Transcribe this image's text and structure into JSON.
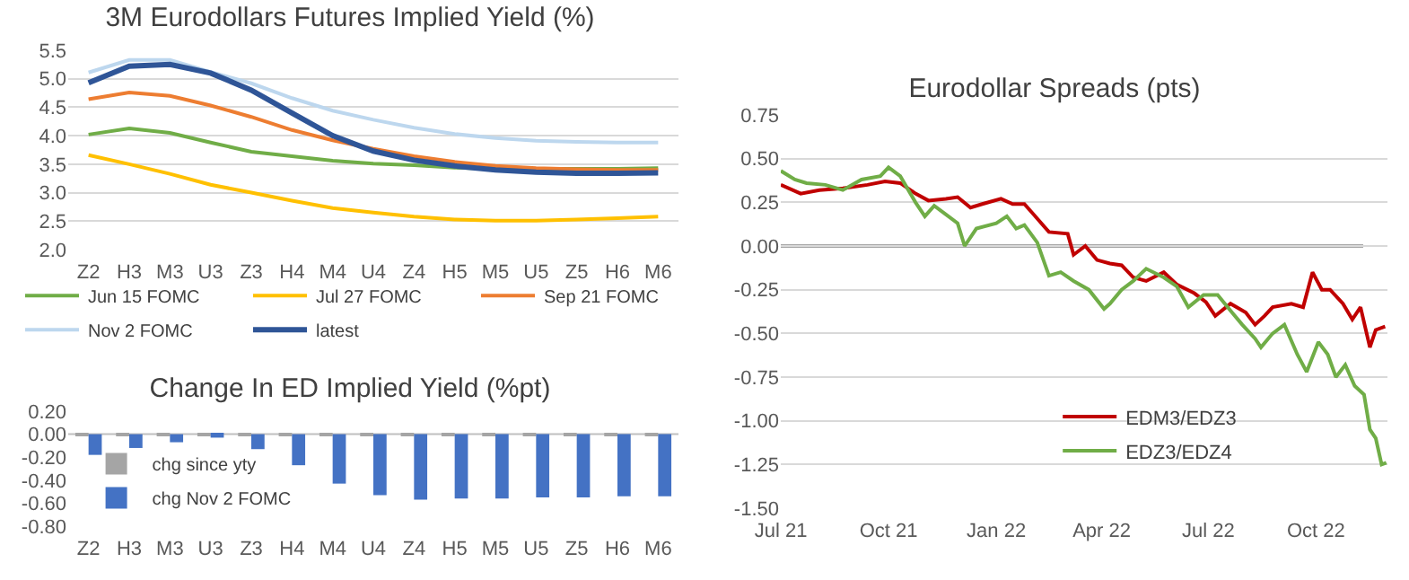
{
  "chart_data": [
    {
      "type": "line",
      "title": "3M Eurodollars Futures Implied Yield (%)",
      "categories": [
        "Z2",
        "H3",
        "M3",
        "U3",
        "Z3",
        "H4",
        "M4",
        "U4",
        "Z4",
        "H5",
        "M5",
        "U5",
        "Z5",
        "H6",
        "M6"
      ],
      "series": [
        {
          "name": "Jun 15 FOMC",
          "color": "#70ad47",
          "values": [
            4.02,
            4.13,
            4.05,
            3.88,
            3.72,
            3.64,
            3.56,
            3.51,
            3.48,
            3.44,
            3.42,
            3.42,
            3.42,
            3.42,
            3.43
          ]
        },
        {
          "name": "Jul 27 FOMC",
          "color": "#ffc000",
          "values": [
            3.66,
            3.5,
            3.33,
            3.14,
            3.0,
            2.86,
            2.73,
            2.65,
            2.58,
            2.53,
            2.51,
            2.51,
            2.53,
            2.55,
            2.58
          ]
        },
        {
          "name": "Sep 21 FOMC",
          "color": "#ed7d31",
          "values": [
            4.64,
            4.76,
            4.7,
            4.53,
            4.33,
            4.1,
            3.92,
            3.77,
            3.64,
            3.54,
            3.47,
            3.43,
            3.41,
            3.4,
            3.4
          ]
        },
        {
          "name": "Nov 2 FOMC",
          "color": "#bdd7ee",
          "values": [
            5.11,
            5.33,
            5.33,
            5.12,
            4.92,
            4.66,
            4.44,
            4.28,
            4.14,
            4.03,
            3.96,
            3.91,
            3.89,
            3.88,
            3.88
          ]
        },
        {
          "name": "latest",
          "color": "#2f5597",
          "values": [
            4.93,
            5.22,
            5.25,
            5.1,
            4.8,
            4.4,
            4.0,
            3.73,
            3.57,
            3.47,
            3.4,
            3.36,
            3.34,
            3.34,
            3.35
          ]
        }
      ],
      "ylim": [
        2,
        5.5
      ],
      "yticks": [
        {
          "value": 2,
          "label": "2.0"
        },
        2.5,
        {
          "value": 3,
          "label": "3.0"
        },
        3.5,
        {
          "value": 4,
          "label": "4.0"
        },
        4.5,
        {
          "value": 5,
          "label": "5.0"
        },
        5.5
      ],
      "grid": "y",
      "legend": "bottom",
      "marker": "none",
      "line_style": "solid"
    },
    {
      "type": "bar",
      "title": "Change In ED Implied Yield (%pt)",
      "categories": [
        "Z2",
        "H3",
        "M3",
        "U3",
        "Z3",
        "H4",
        "M4",
        "U4",
        "Z4",
        "H5",
        "M5",
        "U5",
        "Z5",
        "H6",
        "M6"
      ],
      "series": [
        {
          "name": "chg since yty",
          "color": "#a5a5a5",
          "values": [
            -0.01,
            -0.01,
            -0.01,
            -0.01,
            -0.01,
            -0.01,
            -0.01,
            -0.01,
            -0.01,
            -0.01,
            -0.01,
            -0.01,
            -0.01,
            -0.01,
            -0.01
          ]
        },
        {
          "name": "chg Nov 2 FOMC",
          "color": "#4472c4",
          "values": [
            -0.18,
            -0.12,
            -0.07,
            -0.03,
            -0.13,
            -0.27,
            -0.43,
            -0.53,
            -0.57,
            -0.56,
            -0.56,
            -0.55,
            -0.55,
            -0.54,
            -0.54
          ]
        }
      ],
      "ylim": [
        -0.8,
        0.2
      ],
      "yticks": [
        {
          "value": -0.8,
          "label": "-0.80"
        },
        {
          "value": -0.6,
          "label": "-0.60"
        },
        {
          "value": -0.4,
          "label": "-0.40"
        },
        {
          "value": -0.2,
          "label": "-0.20"
        },
        {
          "value": 0,
          "label": "0.00"
        },
        {
          "value": 0.2,
          "label": "0.20"
        }
      ],
      "ref_lines": [
        {
          "axis": "y",
          "value": 0,
          "color": "#bfbfbf"
        }
      ],
      "grid": false,
      "legend": "bottom left"
    },
    {
      "type": "line",
      "title": "Eurodollar Spreads (pts)",
      "series": [
        {
          "name": "EDM3/EDZ3",
          "color": "#c00000",
          "x": [
            "2021-07-01",
            "2021-07-18",
            "2021-08-03",
            "2021-08-23",
            "2021-09-13",
            "2021-09-28",
            "2021-10-11",
            "2021-10-24",
            "2021-11-04",
            "2021-11-19",
            "2021-11-29",
            "2021-12-10",
            "2021-12-20",
            "2022-01-05",
            "2022-01-15",
            "2022-01-25",
            "2022-02-02",
            "2022-02-15",
            "2022-03-03",
            "2022-03-08",
            "2022-03-18",
            "2022-03-28",
            "2022-04-08",
            "2022-04-18",
            "2022-04-28",
            "2022-05-09",
            "2022-05-24",
            "2022-06-04",
            "2022-06-19",
            "2022-06-29",
            "2022-07-07",
            "2022-07-20",
            "2022-08-02",
            "2022-08-10",
            "2022-08-18",
            "2022-08-25",
            "2022-09-10",
            "2022-09-20",
            "2022-09-28",
            "2022-10-06",
            "2022-10-13",
            "2022-10-24",
            "2022-11-01",
            "2022-11-08",
            "2022-11-16",
            "2022-11-21",
            "2022-11-29"
          ],
          "values": [
            0.35,
            0.3,
            0.32,
            0.33,
            0.35,
            0.37,
            0.36,
            0.3,
            0.26,
            0.27,
            0.28,
            0.22,
            0.24,
            0.27,
            0.24,
            0.24,
            0.18,
            0.08,
            0.07,
            -0.05,
            0.0,
            -0.08,
            -0.1,
            -0.11,
            -0.18,
            -0.2,
            -0.15,
            -0.22,
            -0.27,
            -0.32,
            -0.4,
            -0.33,
            -0.38,
            -0.45,
            -0.4,
            -0.35,
            -0.33,
            -0.35,
            -0.15,
            -0.25,
            -0.25,
            -0.33,
            -0.42,
            -0.35,
            -0.58,
            -0.48,
            -0.46
          ]
        },
        {
          "name": "EDZ3/EDZ4",
          "color": "#70ad47",
          "x": [
            "2021-07-01",
            "2021-07-13",
            "2021-07-23",
            "2021-08-08",
            "2021-08-23",
            "2021-09-08",
            "2021-09-24",
            "2021-10-01",
            "2021-10-11",
            "2021-10-24",
            "2021-11-01",
            "2021-11-09",
            "2021-11-19",
            "2021-11-29",
            "2021-12-05",
            "2021-12-15",
            "2022-01-01",
            "2022-01-10",
            "2022-01-18",
            "2022-01-25",
            "2022-02-05",
            "2022-02-15",
            "2022-02-25",
            "2022-03-08",
            "2022-03-21",
            "2022-04-03",
            "2022-04-08",
            "2022-04-18",
            "2022-04-28",
            "2022-05-09",
            "2022-05-24",
            "2022-06-04",
            "2022-06-14",
            "2022-06-27",
            "2022-07-09",
            "2022-07-20",
            "2022-07-30",
            "2022-08-10",
            "2022-08-15",
            "2022-08-25",
            "2022-09-04",
            "2022-09-15",
            "2022-09-23",
            "2022-10-03",
            "2022-10-11",
            "2022-10-18",
            "2022-10-26",
            "2022-11-03",
            "2022-11-11",
            "2022-11-16",
            "2022-11-21",
            "2022-11-26",
            "2022-11-30"
          ],
          "values": [
            0.43,
            0.38,
            0.36,
            0.35,
            0.32,
            0.38,
            0.4,
            0.45,
            0.4,
            0.25,
            0.17,
            0.23,
            0.18,
            0.13,
            0.0,
            0.1,
            0.13,
            0.17,
            0.1,
            0.12,
            0.02,
            -0.17,
            -0.15,
            -0.2,
            -0.25,
            -0.36,
            -0.33,
            -0.25,
            -0.2,
            -0.13,
            -0.18,
            -0.23,
            -0.35,
            -0.28,
            -0.28,
            -0.37,
            -0.45,
            -0.53,
            -0.58,
            -0.5,
            -0.45,
            -0.62,
            -0.72,
            -0.55,
            -0.62,
            -0.75,
            -0.68,
            -0.8,
            -0.85,
            -1.05,
            -1.1,
            -1.25,
            -1.24
          ]
        }
      ],
      "xlim": [
        "2021-07-01",
        "2022-12-01"
      ],
      "xticks": [
        {
          "value": "2021-07-01",
          "label": "Jul 21"
        },
        {
          "value": "2021-10-01",
          "label": "Oct 21"
        },
        {
          "value": "2022-01-01",
          "label": "Jan 22"
        },
        {
          "value": "2022-04-01",
          "label": "Apr 22"
        },
        {
          "value": "2022-07-01",
          "label": "Jul 22"
        },
        {
          "value": "2022-10-01",
          "label": "Oct 22"
        }
      ],
      "ylim": [
        -1.5,
        0.75
      ],
      "yticks": [
        {
          "value": -1.5,
          "label": "-1.50"
        },
        {
          "value": -1.25,
          "label": "-1.25"
        },
        {
          "value": -1,
          "label": "-1.00"
        },
        {
          "value": -0.75,
          "label": "-0.75"
        },
        {
          "value": -0.5,
          "label": "-0.50"
        },
        {
          "value": -0.25,
          "label": "-0.25"
        },
        {
          "value": 0,
          "label": "0.00"
        },
        {
          "value": 0.25,
          "label": "0.25"
        },
        {
          "value": 0.5,
          "label": "0.50"
        },
        0.75
      ],
      "ref_lines": [
        {
          "axis": "y",
          "value": 0,
          "color": "#a6a6a6"
        }
      ],
      "grid": "y",
      "legend": "bottom right",
      "marker": "none",
      "line_style": "solid"
    }
  ]
}
